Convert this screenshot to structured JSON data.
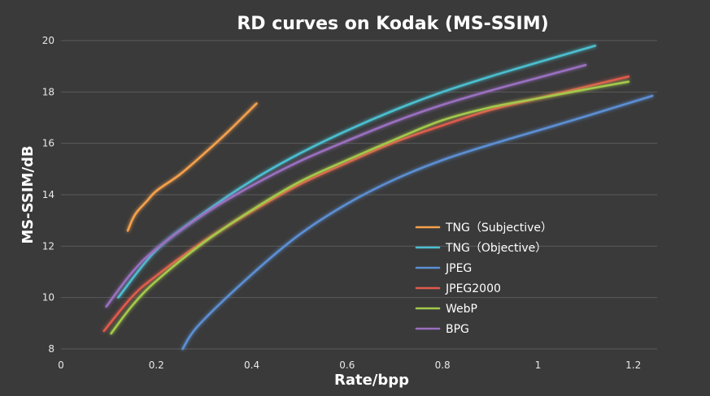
{
  "chart_data": {
    "type": "line",
    "title": "RD curves on Kodak (MS-SSIM)",
    "xlabel": "Rate/bpp",
    "ylabel": "MS-SSIM/dB",
    "xlim": [
      0,
      1.25
    ],
    "ylim": [
      8,
      20
    ],
    "xticks": [
      0,
      0.2,
      0.4,
      0.6,
      0.8,
      1,
      1.2
    ],
    "xtick_labels": [
      "0",
      "0.2",
      "0.4",
      "0.6",
      "0.8",
      "1",
      "1.2"
    ],
    "yticks": [
      8,
      10,
      12,
      14,
      16,
      18,
      20
    ],
    "ytick_labels": [
      "8",
      "10",
      "12",
      "14",
      "16",
      "18",
      "20"
    ],
    "grid": "horizontal",
    "legend_position": "right",
    "series": [
      {
        "name": "TNG（Subjective）",
        "color": "#f5a04c",
        "x": [
          0.14,
          0.15,
          0.16,
          0.18,
          0.2,
          0.25,
          0.3,
          0.35,
          0.41
        ],
        "y": [
          12.6,
          13.05,
          13.35,
          13.75,
          14.15,
          14.8,
          15.6,
          16.45,
          17.55
        ]
      },
      {
        "name": "TNG（Objective）",
        "color": "#4bbfd0",
        "x": [
          0.12,
          0.2,
          0.3,
          0.4,
          0.5,
          0.6,
          0.7,
          0.8,
          0.9,
          1.0,
          1.12
        ],
        "y": [
          10.0,
          11.85,
          13.3,
          14.55,
          15.6,
          16.5,
          17.3,
          18.0,
          18.6,
          19.15,
          19.8
        ]
      },
      {
        "name": "JPEG",
        "color": "#5b8fd4",
        "x": [
          0.255,
          0.29,
          0.4,
          0.5,
          0.6,
          0.7,
          0.8,
          0.9,
          1.0,
          1.1,
          1.24
        ],
        "y": [
          8.0,
          8.95,
          10.9,
          12.45,
          13.65,
          14.6,
          15.35,
          15.95,
          16.5,
          17.05,
          17.85
        ]
      },
      {
        "name": "JPEG2000",
        "color": "#e05a4e",
        "x": [
          0.09,
          0.15,
          0.2,
          0.3,
          0.4,
          0.5,
          0.6,
          0.7,
          0.8,
          0.9,
          1.0,
          1.1,
          1.19
        ],
        "y": [
          8.7,
          10.05,
          10.85,
          12.2,
          13.35,
          14.4,
          15.25,
          16.05,
          16.7,
          17.3,
          17.75,
          18.2,
          18.6
        ]
      },
      {
        "name": "WebP",
        "color": "#a3c94b",
        "x": [
          0.105,
          0.15,
          0.2,
          0.3,
          0.4,
          0.5,
          0.6,
          0.7,
          0.8,
          0.9,
          1.0,
          1.1,
          1.19
        ],
        "y": [
          8.6,
          9.7,
          10.65,
          12.15,
          13.4,
          14.5,
          15.35,
          16.15,
          16.9,
          17.4,
          17.75,
          18.1,
          18.4
        ]
      },
      {
        "name": "BPG",
        "color": "#9a6fc0",
        "x": [
          0.095,
          0.15,
          0.2,
          0.3,
          0.4,
          0.5,
          0.6,
          0.7,
          0.8,
          0.9,
          1.0,
          1.1
        ],
        "y": [
          9.65,
          11.0,
          11.9,
          13.25,
          14.35,
          15.3,
          16.1,
          16.85,
          17.5,
          18.05,
          18.55,
          19.05
        ]
      }
    ]
  }
}
